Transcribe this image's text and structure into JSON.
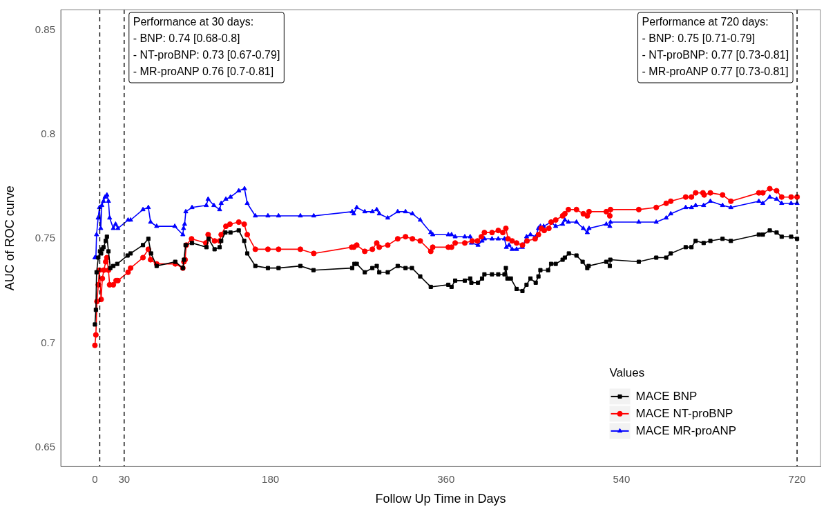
{
  "chart_data": {
    "type": "line",
    "xlabel": "Follow Up Time in Days",
    "ylabel": "AUC of ROC curve",
    "legend_title": "Values",
    "legend": "bottom right",
    "grid": false,
    "xlim": [
      -35,
      744
    ],
    "xticks": [
      0,
      30,
      180,
      360,
      540,
      720
    ],
    "ylim": [
      0.641,
      0.8597
    ],
    "yticks": [
      0.65,
      0.7,
      0.75,
      0.8,
      0.85
    ],
    "ref_lines": [
      {
        "axis": "x",
        "value": 5,
        "color": "#000000",
        "line_style": "dashed"
      },
      {
        "axis": "x",
        "value": 30,
        "color": "#000000",
        "line_style": "dashed"
      },
      {
        "axis": "x",
        "value": 720,
        "color": "#000000",
        "line_style": "dashed"
      }
    ],
    "annotations": [
      "Performance at 30 days:\n- BNP: 0.74 [0.68-0.8]\n- NT-proBNP: 0.73 [0.67-0.79]\n- MR-proANP 0.76 [0.7-0.81]",
      "Performance at 720 days:\n- BNP: 0.75 [0.71-0.79]\n- NT-proBNP: 0.77 [0.73-0.81]\n- MR-proANP 0.77 [0.73-0.81]"
    ],
    "series": [
      {
        "name": "MACE BNP",
        "color": "#000000",
        "marker": "square",
        "x": [
          0,
          1,
          1.7,
          3.5,
          5.2,
          6.4,
          7.6,
          8.8,
          11.1,
          12.3,
          13.9,
          15.8,
          18.9,
          22.9,
          33.5,
          36.6,
          49.3,
          54.8,
          57.6,
          63.3,
          82.4,
          90.2,
          91.3,
          93,
          99.6,
          114.4,
          116.6,
          122.7,
          127.9,
          129.5,
          133.8,
          139,
          147.5,
          153.1,
          156.2,
          164.5,
          177.4,
          188.3,
          210.7,
          224.1,
          263.8,
          266.1,
          268.5,
          276.7,
          284.5,
          289,
          291.6,
          300.3,
          310.5,
          318.5,
          325.1,
          333.6,
          344.4,
          362.4,
          365.7,
          369.4,
          379.3,
          384.8,
          386,
          392.8,
          397,
          399.4,
          407.2,
          413.6,
          420,
          421.4,
          423,
          426.5,
          432.4,
          438.4,
          442.6,
          446.6,
          452,
          454.8,
          456.8,
          464.7,
          467.8,
          472.5,
          479.6,
          481.9,
          486,
          493.8,
          500.1,
          504.9,
          506.3,
          524.4,
          528,
          528.5,
          557.7,
          575.6,
          585.8,
          590.5,
          605.8,
          611.7,
          616,
          624.2,
          631.1,
          643.6,
          652.1,
          680.8,
          684.9,
          692,
          699,
          704.2,
          713.9,
          720
        ],
        "values": [
          0.709,
          0.716,
          0.734,
          0.741,
          0.744,
          0.743,
          0.745,
          0.746,
          0.749,
          0.751,
          0.744,
          0.736,
          0.737,
          0.738,
          0.742,
          0.743,
          0.747,
          0.75,
          0.743,
          0.737,
          0.739,
          0.736,
          0.74,
          0.747,
          0.748,
          0.746,
          0.75,
          0.745,
          0.746,
          0.749,
          0.753,
          0.753,
          0.754,
          0.749,
          0.743,
          0.737,
          0.736,
          0.736,
          0.737,
          0.735,
          0.736,
          0.738,
          0.738,
          0.734,
          0.736,
          0.737,
          0.734,
          0.734,
          0.737,
          0.736,
          0.736,
          0.732,
          0.727,
          0.728,
          0.727,
          0.73,
          0.73,
          0.731,
          0.729,
          0.729,
          0.731,
          0.733,
          0.733,
          0.733,
          0.733,
          0.736,
          0.731,
          0.731,
          0.726,
          0.725,
          0.728,
          0.731,
          0.729,
          0.732,
          0.735,
          0.735,
          0.738,
          0.738,
          0.74,
          0.741,
          0.743,
          0.742,
          0.739,
          0.736,
          0.737,
          0.739,
          0.737,
          0.74,
          0.739,
          0.741,
          0.741,
          0.743,
          0.746,
          0.746,
          0.749,
          0.748,
          0.749,
          0.75,
          0.749,
          0.752,
          0.752,
          0.754,
          0.753,
          0.751,
          0.751,
          0.75
        ]
      },
      {
        "name": "MACE NT-proBNP",
        "color": "#ff0000",
        "marker": "circle",
        "x": [
          0,
          1,
          2.1,
          3.5,
          4.5,
          6.4,
          7.6,
          9.2,
          11.1,
          12.3,
          13.9,
          15.1,
          18.9,
          21.7,
          23.6,
          34,
          36.6,
          49.3,
          54.8,
          57.1,
          63.3,
          82.4,
          90.2,
          91.3,
          92.5,
          93.7,
          99.1,
          113.7,
          116.1,
          122.7,
          127.9,
          129.5,
          134.3,
          138.5,
          147.5,
          153.1,
          156.2,
          164.5,
          177.4,
          188.3,
          210.7,
          224.4,
          263.3,
          265.4,
          268.5,
          276.7,
          284.5,
          289,
          291.6,
          300.3,
          310.5,
          318.5,
          325.6,
          333.6,
          344.4,
          346.4,
          362.4,
          365.7,
          369.4,
          379.3,
          386.9,
          392.3,
          396.3,
          399.4,
          407.2,
          413.6,
          418.3,
          421.4,
          423.7,
          427.8,
          432.4,
          438.4,
          443.1,
          451.4,
          454.8,
          457.7,
          460.7,
          465.5,
          467.8,
          472.5,
          479.6,
          481.9,
          485.5,
          493.8,
          500.8,
          504.9,
          506.7,
          524.4,
          528,
          528.7,
          557.7,
          575.6,
          585.8,
          590.5,
          605.8,
          611.7,
          616,
          623.5,
          624.7,
          631.1,
          643.6,
          652.1,
          680.8,
          684.9,
          692,
          699,
          704.2,
          713.9,
          720
        ],
        "values": [
          0.699,
          0.704,
          0.72,
          0.728,
          0.735,
          0.721,
          0.731,
          0.735,
          0.739,
          0.741,
          0.735,
          0.728,
          0.728,
          0.73,
          0.73,
          0.734,
          0.736,
          0.741,
          0.745,
          0.74,
          0.738,
          0.738,
          0.736,
          0.739,
          0.74,
          0.747,
          0.75,
          0.748,
          0.752,
          0.749,
          0.749,
          0.752,
          0.756,
          0.757,
          0.758,
          0.757,
          0.752,
          0.745,
          0.745,
          0.745,
          0.745,
          0.743,
          0.746,
          0.746,
          0.747,
          0.744,
          0.745,
          0.748,
          0.746,
          0.747,
          0.75,
          0.751,
          0.75,
          0.749,
          0.744,
          0.746,
          0.746,
          0.746,
          0.748,
          0.748,
          0.749,
          0.749,
          0.751,
          0.753,
          0.753,
          0.754,
          0.753,
          0.755,
          0.75,
          0.749,
          0.748,
          0.747,
          0.749,
          0.75,
          0.752,
          0.755,
          0.754,
          0.755,
          0.758,
          0.759,
          0.761,
          0.762,
          0.764,
          0.764,
          0.762,
          0.761,
          0.763,
          0.763,
          0.761,
          0.764,
          0.764,
          0.765,
          0.767,
          0.768,
          0.77,
          0.77,
          0.772,
          0.772,
          0.771,
          0.772,
          0.771,
          0.768,
          0.772,
          0.772,
          0.774,
          0.773,
          0.77,
          0.77,
          0.77
        ]
      },
      {
        "name": "MACE MR-proANP",
        "color": "#0000ff",
        "marker": "triangle",
        "x": [
          0,
          1,
          1.7,
          3.3,
          4.7,
          6,
          7.1,
          8.8,
          10.4,
          12.3,
          13.9,
          15.1,
          18.9,
          21.2,
          23.6,
          34,
          36.6,
          49.3,
          54.8,
          57.1,
          63.3,
          81.9,
          90.2,
          90.9,
          92,
          93.2,
          99.6,
          114.2,
          116.1,
          122,
          127.9,
          129.5,
          134.3,
          139,
          147.5,
          153.4,
          156.2,
          164.5,
          177.4,
          188.3,
          210.7,
          224.4,
          263.8,
          265.4,
          268.5,
          276.7,
          284.5,
          289,
          291.6,
          300.3,
          310.5,
          318.5,
          325.6,
          333.6,
          344.4,
          346.4,
          362.4,
          365.7,
          369.4,
          379.3,
          384.8,
          386,
          392.8,
          397,
          399.4,
          407.2,
          413.6,
          420,
          421.9,
          424.7,
          427.8,
          432.4,
          438.4,
          442.6,
          446.6,
          452,
          454.8,
          456.8,
          460.1,
          467.8,
          472.5,
          479.6,
          481.9,
          485.5,
          493.8,
          500.8,
          504.9,
          506.7,
          524.4,
          528,
          528.7,
          557.7,
          575.6,
          585.8,
          590.5,
          605.8,
          611.7,
          616,
          624.2,
          631.1,
          643.6,
          652.1,
          680.8,
          684.9,
          692,
          699,
          704.2,
          713.9,
          720
        ],
        "values": [
          0.741,
          0.741,
          0.752,
          0.76,
          0.765,
          0.755,
          0.766,
          0.768,
          0.77,
          0.771,
          0.768,
          0.76,
          0.755,
          0.757,
          0.755,
          0.759,
          0.759,
          0.764,
          0.765,
          0.758,
          0.756,
          0.756,
          0.752,
          0.755,
          0.757,
          0.763,
          0.765,
          0.766,
          0.769,
          0.766,
          0.764,
          0.767,
          0.769,
          0.77,
          0.773,
          0.774,
          0.767,
          0.761,
          0.761,
          0.761,
          0.761,
          0.761,
          0.763,
          0.762,
          0.765,
          0.763,
          0.763,
          0.764,
          0.762,
          0.76,
          0.763,
          0.763,
          0.762,
          0.759,
          0.753,
          0.752,
          0.752,
          0.752,
          0.751,
          0.751,
          0.751,
          0.748,
          0.747,
          0.749,
          0.75,
          0.75,
          0.75,
          0.75,
          0.746,
          0.747,
          0.745,
          0.745,
          0.746,
          0.751,
          0.752,
          0.751,
          0.755,
          0.756,
          0.756,
          0.758,
          0.756,
          0.757,
          0.759,
          0.758,
          0.758,
          0.755,
          0.753,
          0.755,
          0.757,
          0.756,
          0.758,
          0.758,
          0.758,
          0.76,
          0.762,
          0.765,
          0.765,
          0.766,
          0.766,
          0.768,
          0.766,
          0.765,
          0.768,
          0.767,
          0.77,
          0.769,
          0.767,
          0.767,
          0.767
        ]
      }
    ]
  }
}
